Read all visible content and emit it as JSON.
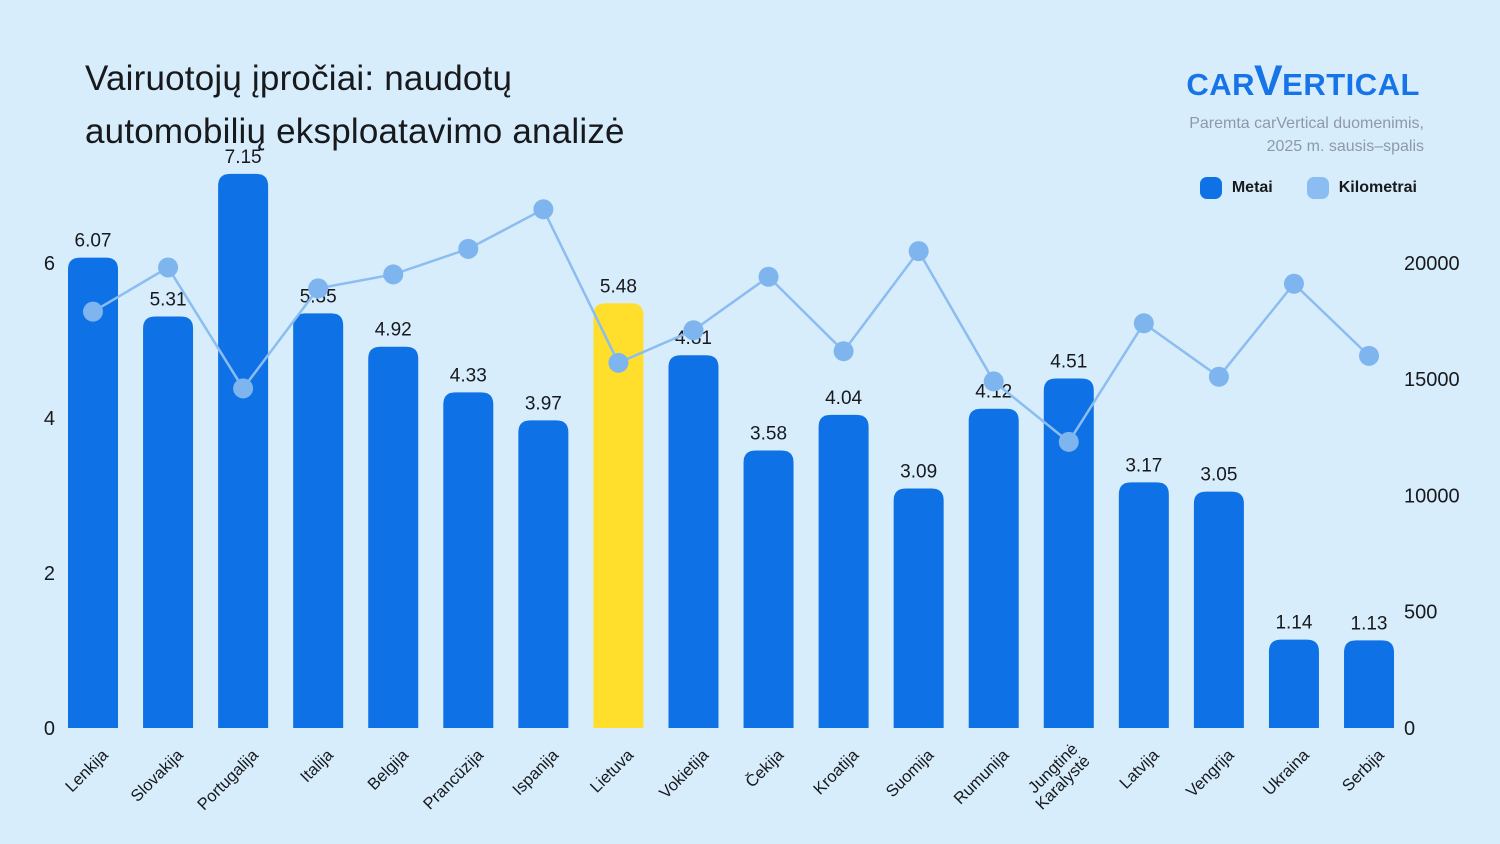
{
  "title": {
    "line1": "Vairuotojų įpročiai: naudotų",
    "line2": "automobilių eksploatavimo analizė"
  },
  "brand": {
    "logo_part1": "CAR",
    "logo_v": "V",
    "logo_part2": "ERTICAL",
    "source_line1": "Paremta carVertical duomenimis,",
    "source_line2": "2025 m. sausis–spalis"
  },
  "legend": [
    {
      "label": "Metai",
      "color": "#0e71e6"
    },
    {
      "label": "Kilometrai",
      "color": "#8bbdf2"
    }
  ],
  "colors": {
    "background": "#d7edfb",
    "bar": "#0e71e6",
    "bar_highlight": "#ffdf2b",
    "line": "#8cbdf0",
    "dot": "#7eb5ee",
    "text_dark": "#17191d",
    "text_gray": "#8d99a8",
    "logo_blue": "#1673e8"
  },
  "chart_data": {
    "type": "combo_bar_line",
    "title": "Vairuotojų įpročiai: naudotų automobilių eksploatavimo analizė",
    "categories": [
      "Lenkija",
      "Slovakija",
      "Portugalija",
      "Italija",
      "Belgija",
      "Prancūzija",
      "Ispanija",
      "Lietuva",
      "Vokietija",
      "Čekija",
      "Kroatija",
      "Suomija",
      "Rumunija",
      "Jungtinė\nKaralystė",
      "Latvija",
      "Vengrija",
      "Ukraina",
      "Serbija"
    ],
    "series": [
      {
        "name": "Metai",
        "type": "bar",
        "axis": "left",
        "values": [
          6.07,
          5.31,
          7.15,
          5.35,
          4.92,
          4.33,
          3.97,
          5.48,
          4.81,
          3.58,
          4.04,
          3.09,
          4.12,
          4.51,
          3.17,
          3.05,
          1.14,
          1.13
        ]
      },
      {
        "name": "Kilometrai",
        "type": "line",
        "axis": "right",
        "estimated": true,
        "values": [
          17900,
          19800,
          14600,
          18900,
          19500,
          20600,
          22300,
          15700,
          17100,
          19400,
          16200,
          20500,
          14900,
          12300,
          17400,
          15100,
          19100,
          16000
        ]
      }
    ],
    "highlight_category": "Lietuva",
    "left_axis": {
      "ticks": [
        "0",
        "2",
        "4",
        "6"
      ],
      "range": [
        0,
        7.5
      ]
    },
    "right_axis": {
      "ticks": [
        "0",
        "500",
        "10000",
        "15000",
        "20000"
      ],
      "range": [
        0,
        20000
      ]
    },
    "grid": false,
    "legend_position": "top-right"
  }
}
